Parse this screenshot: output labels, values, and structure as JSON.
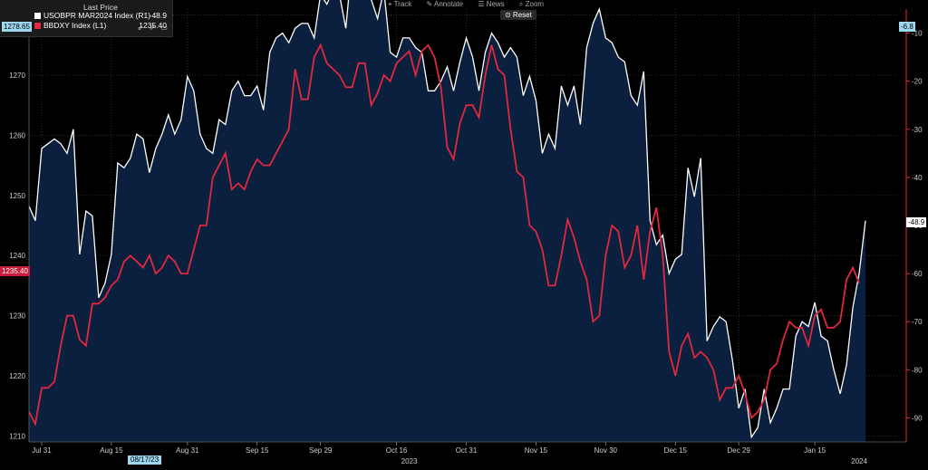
{
  "legend": {
    "title": "Last Price",
    "series": [
      {
        "name": "USOBPR MAR2024 Index  (R1)",
        "value": "-48.9",
        "color": "#ffffff"
      },
      {
        "name": "BBDXY Index  (L1)",
        "value": "1235.40",
        "color": "#e0283f"
      }
    ],
    "icons": "⇙ ⇗ ▭"
  },
  "toolbar": {
    "track": "⌖ Track",
    "annotate": "✎ Annotate",
    "news": "☰ News",
    "zoom": "⌕ Zoom",
    "reset": "⊙ Reset"
  },
  "tags": {
    "left_top": "1278.65",
    "left_red": "1235.40",
    "right_top": "-6.8",
    "right_white": "-48.9",
    "date_cursor": "08/17/23"
  },
  "colors": {
    "background": "#000000",
    "area_fill": "#0b1f3e",
    "white_line": "#ffffff",
    "red_line": "#e0283f",
    "grid": "#4a4a4a",
    "right_axis": "#e0283f"
  },
  "chart_data": {
    "type": "line",
    "x_tick_labels": [
      "Jul 31",
      "Aug 15",
      "Aug 31",
      "Sep 15",
      "Sep 29",
      "Oct 16",
      "Oct 31",
      "Nov 15",
      "Nov 30",
      "Dec 15",
      "Dec 29",
      "Jan 15"
    ],
    "x_year_labels": [
      {
        "label": "2023",
        "at": 60
      },
      {
        "label": "2024",
        "at": 131
      }
    ],
    "x_range": [
      0,
      137
    ],
    "left_axis": {
      "ticks": [
        1210,
        1220,
        1230,
        1240,
        1250,
        1260,
        1270,
        1280
      ],
      "range": [
        1209,
        1281
      ]
    },
    "right_axis": {
      "ticks": [
        -10,
        -20,
        -30,
        -40,
        -50,
        -60,
        -70,
        -80,
        -90
      ],
      "range": [
        -95,
        -5
      ]
    },
    "series": [
      {
        "name": "USOBPR MAR2024 Index",
        "axis": "right",
        "color": "#ffffff",
        "style": "area",
        "values": [
          -46,
          -49,
          -34,
          -33,
          -32,
          -33,
          -35,
          -30,
          -56,
          -47,
          -48,
          -65,
          -62,
          -56,
          -37,
          -38,
          -36,
          -31,
          -32,
          -39,
          -34,
          -31,
          -27,
          -31,
          -28,
          -19,
          -22,
          -31,
          -34,
          -35,
          -28,
          -29,
          -22,
          -20,
          -23,
          -23,
          -21,
          -26,
          -14,
          -11,
          -10,
          -12,
          -9,
          -8,
          -8,
          -11,
          -2,
          -4,
          -1,
          -2,
          -9,
          5,
          2,
          -2,
          -3,
          -7,
          -1,
          -14,
          -15,
          -11,
          -11,
          -13,
          -14,
          -22,
          -22,
          -20,
          -17,
          -22,
          -16,
          -11,
          -15,
          -22,
          -14,
          -10,
          -12,
          -15,
          -13,
          -15,
          -23,
          -19,
          -24,
          -35,
          -31,
          -34,
          -21,
          -25,
          -21,
          -29,
          -13,
          -8,
          -5,
          -11,
          -12,
          -15,
          -16,
          -23,
          -25,
          -18,
          -49,
          -54,
          -52,
          -60,
          -57,
          -56,
          -38,
          -44,
          -36,
          -74,
          -71,
          -69,
          -70,
          -78,
          -88,
          -84,
          -94,
          -92,
          -84,
          -91,
          -88,
          -84,
          -84,
          -73,
          -70,
          -71,
          -66,
          -73,
          -74,
          -80,
          -85,
          -79,
          -67,
          -60,
          -49
        ],
        "last": -48.9
      },
      {
        "name": "BBDXY Index",
        "axis": "left",
        "color": "#e0283f",
        "style": "line",
        "values": [
          1214,
          1212,
          1218,
          1218,
          1219,
          1225,
          1230,
          1230,
          1226,
          1225,
          1232,
          1232,
          1233,
          1235,
          1236,
          1239,
          1240,
          1239,
          1238,
          1240,
          1237,
          1238,
          1240,
          1239,
          1237,
          1237,
          1241,
          1245,
          1245,
          1253,
          1255,
          1257,
          1251,
          1252,
          1251,
          1254,
          1256,
          1255,
          1255,
          1257,
          1259,
          1261,
          1271,
          1266,
          1266,
          1273,
          1275,
          1272,
          1271,
          1270,
          1268,
          1268,
          1272,
          1272,
          1265,
          1267,
          1270,
          1269,
          1272,
          1273,
          1274,
          1270,
          1274,
          1275,
          1273,
          1268,
          1258,
          1256,
          1262,
          1265,
          1265,
          1263,
          1270,
          1275,
          1271,
          1270,
          1261,
          1254,
          1253,
          1245,
          1244,
          1241,
          1235,
          1235,
          1240,
          1246,
          1243,
          1239,
          1236,
          1229,
          1230,
          1240,
          1245,
          1244,
          1238,
          1240,
          1245,
          1236,
          1244,
          1248,
          1240,
          1224,
          1220,
          1225,
          1227,
          1223,
          1224,
          1223,
          1221,
          1216,
          1218,
          1218,
          1220,
          1217,
          1213,
          1214,
          1216,
          1221,
          1222,
          1226,
          1229,
          1228,
          1228,
          1225,
          1230,
          1231,
          1228,
          1228,
          1229,
          1236,
          1238,
          1235.4
        ],
        "last": 1235.4
      }
    ]
  }
}
